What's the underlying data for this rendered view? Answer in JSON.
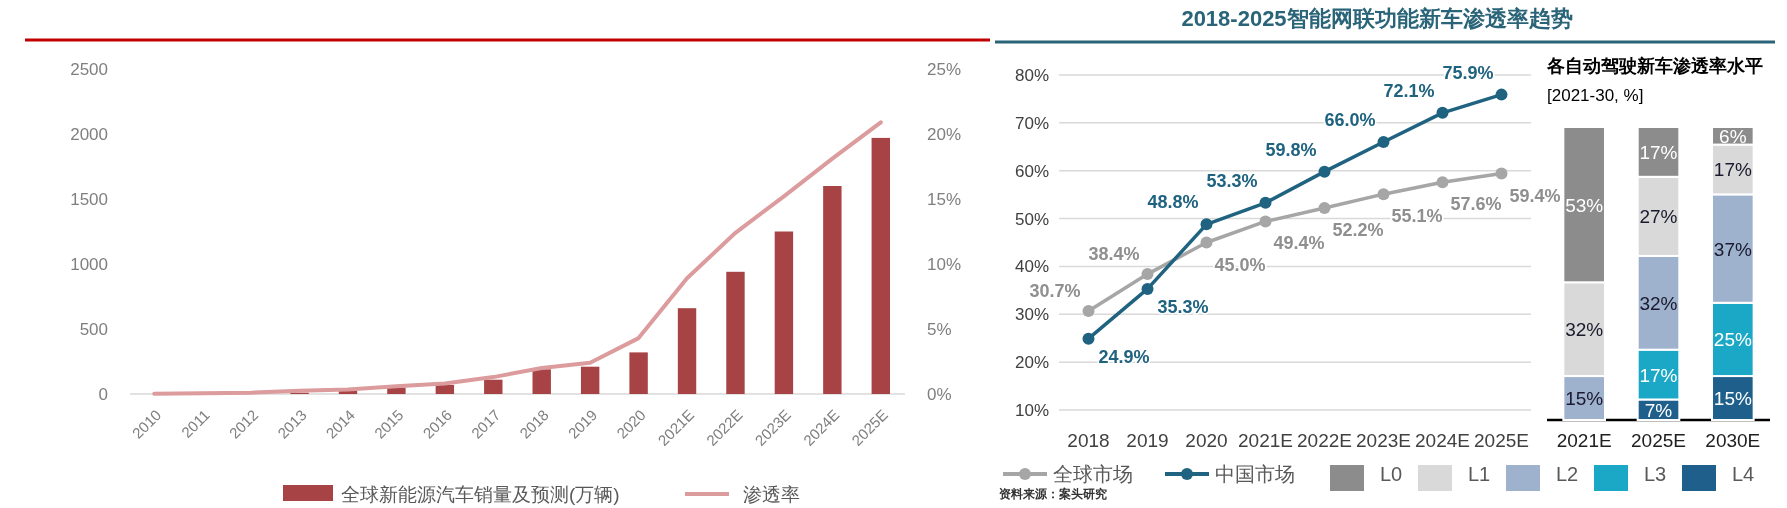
{
  "chart_data": [
    {
      "type": "bar",
      "categories": [
        "2010",
        "2011",
        "2012",
        "2013",
        "2014",
        "2015",
        "2016",
        "2017",
        "2018",
        "2019",
        "2020",
        "2021E",
        "2022E",
        "2023E",
        "2024E",
        "2025E"
      ],
      "series": [
        {
          "name": "全球新能源汽车销量及预测(万辆)",
          "type": "bar",
          "color": "#a84345",
          "values": [
            null,
            2,
            5,
            10,
            25,
            50,
            70,
            110,
            190,
            210,
            320,
            660,
            940,
            1250,
            1600,
            1970
          ]
        },
        {
          "name": "渗透率",
          "type": "line",
          "axis": "y2",
          "color": "#dc9b9c",
          "values": [
            0.02,
            0.05,
            0.1,
            0.25,
            0.35,
            0.6,
            0.8,
            1.3,
            2.0,
            2.4,
            4.3,
            8.9,
            12.4,
            15.2,
            18.1,
            20.9
          ]
        }
      ],
      "ylim": [
        0,
        2500
      ],
      "yticks": [
        0,
        500,
        1000,
        1500,
        2000,
        2500
      ],
      "y2lim": [
        0,
        25
      ],
      "y2ticks": [
        {
          "value": 0,
          "label": "0%"
        },
        {
          "value": 5,
          "label": "5%"
        },
        {
          "value": 10,
          "label": "10%"
        },
        {
          "value": 15,
          "label": "15%"
        },
        {
          "value": 20,
          "label": "20%"
        },
        {
          "value": 25,
          "label": "25%"
        }
      ],
      "grid": false,
      "legend": "bottom"
    },
    {
      "type": "line",
      "title": "2018-2025智能网联功能新车渗透率趋势",
      "categories": [
        "2018",
        "2019",
        "2020",
        "2021E",
        "2022E",
        "2023E",
        "2024E",
        "2025E"
      ],
      "series": [
        {
          "name": "全球市场",
          "color": "#a6a6a6",
          "values": [
            30.7,
            38.4,
            45.0,
            49.4,
            52.2,
            55.1,
            57.6,
            59.4
          ],
          "value_labels": [
            "30.7%",
            "38.4%",
            "45.0%",
            "49.4%",
            "52.2%",
            "55.1%",
            "57.6%",
            "59.4%"
          ]
        },
        {
          "name": "中国市场",
          "color": "#1f6380",
          "values": [
            24.9,
            35.3,
            48.8,
            53.3,
            59.8,
            66.0,
            72.1,
            75.9
          ],
          "value_labels": [
            "24.9%",
            "35.3%",
            "48.8%",
            "53.3%",
            "59.8%",
            "66.0%",
            "72.1%",
            "75.9%"
          ]
        }
      ],
      "ylim": [
        10,
        80
      ],
      "yticks": [
        {
          "value": 10,
          "label": "10%"
        },
        {
          "value": 20,
          "label": "20%"
        },
        {
          "value": 30,
          "label": "30%"
        },
        {
          "value": 40,
          "label": "40%"
        },
        {
          "value": 50,
          "label": "50%"
        },
        {
          "value": 60,
          "label": "60%"
        },
        {
          "value": 70,
          "label": "70%"
        },
        {
          "value": 80,
          "label": "80%"
        }
      ],
      "grid": "y",
      "marker": "circle",
      "legend": "bottom left",
      "annotations": [
        "资料来源：案头研究"
      ]
    },
    {
      "type": "bar",
      "stacked": true,
      "title": "各自动驾驶新车渗透率水平",
      "subtitle": "[2021-30, %]",
      "categories": [
        "2021E",
        "2025E",
        "2030E"
      ],
      "series": [
        {
          "name": "L4",
          "color": "#1f5f8b",
          "values": [
            null,
            7,
            15
          ],
          "value_labels": [
            null,
            "7%",
            "15%"
          ]
        },
        {
          "name": "L3",
          "color": "#1aa8c6",
          "values": [
            null,
            17,
            25
          ],
          "value_labels": [
            null,
            "17%",
            "25%"
          ]
        },
        {
          "name": "L2",
          "color": "#9fb2cd",
          "values": [
            15,
            32,
            37
          ],
          "value_labels": [
            "15%",
            "32%",
            "37%"
          ]
        },
        {
          "name": "L1",
          "color": "#d9d9d9",
          "values": [
            32,
            27,
            17
          ],
          "value_labels": [
            "32%",
            "27%",
            "17%"
          ]
        },
        {
          "name": "L0",
          "color": "#8c8c8c",
          "values": [
            53,
            17,
            6
          ],
          "value_labels": [
            "53%",
            "17%",
            "6%"
          ]
        }
      ],
      "legend": "bottom left"
    }
  ]
}
